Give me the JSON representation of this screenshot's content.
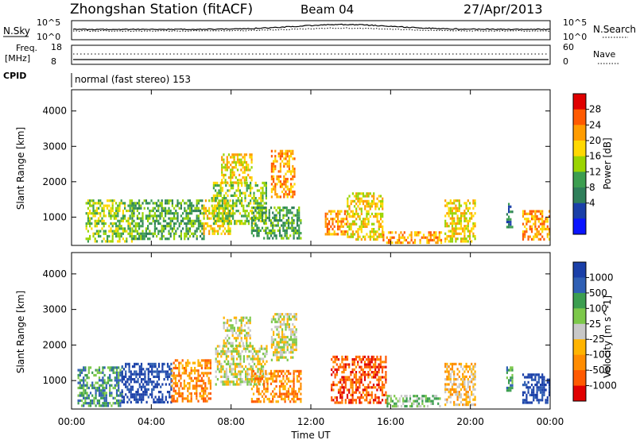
{
  "header": {
    "station": "Zhongshan Station (fitACF)",
    "beam": "Beam 04",
    "date": "27/Apr/2013"
  },
  "top_panels": {
    "nsky_label": "N.Sky",
    "nsky_ticks": [
      "10^5",
      "10^0"
    ],
    "nsearch_label": "N.Search",
    "nsearch_ticks": [
      "10^5",
      "10^0"
    ],
    "freq_label_1": "Freq.",
    "freq_label_2": "[MHz]",
    "freq_ticks": [
      "18",
      "8"
    ],
    "nave_label": "Nave",
    "nave_ticks": [
      "60",
      "0"
    ],
    "cpid_label": "CPID",
    "cpid_value": "normal (fast stereo) 153"
  },
  "chart_data": [
    {
      "type": "heatmap",
      "name": "power",
      "xlabel": "Time UT",
      "ylabel": "Slant Range [km]",
      "x_ticks": [
        "00:00",
        "04:00",
        "08:00",
        "12:00",
        "16:00",
        "20:00",
        "00:00"
      ],
      "x_range_hours": [
        0,
        24
      ],
      "y_ticks": [
        1000,
        2000,
        3000,
        4000
      ],
      "ylim": [
        200,
        4600
      ],
      "colorbar": {
        "title": "Power [dB]",
        "tick_labels": [
          "28",
          "24",
          "20",
          "16",
          "12",
          "8",
          "4"
        ],
        "colors": [
          "#e00000",
          "#ff5a00",
          "#ff9c00",
          "#ffd800",
          "#9ad400",
          "#3c9e50",
          "#2f7f5a",
          "#1a3fa8",
          "#0a14ff"
        ]
      },
      "regions": [
        {
          "t": [
            0.7,
            3.0
          ],
          "r": [
            350,
            1500
          ],
          "level": 4
        },
        {
          "t": [
            3.0,
            6.6
          ],
          "r": [
            400,
            1500
          ],
          "level": 5
        },
        {
          "t": [
            6.6,
            8.0
          ],
          "r": [
            500,
            1500
          ],
          "level": 3
        },
        {
          "t": [
            7.0,
            9.8
          ],
          "r": [
            800,
            2000
          ],
          "level": 4
        },
        {
          "t": [
            7.5,
            9.0
          ],
          "r": [
            2000,
            2800
          ],
          "level": 3
        },
        {
          "t": [
            9.0,
            11.5
          ],
          "r": [
            400,
            1300
          ],
          "level": 5
        },
        {
          "t": [
            10.0,
            11.2
          ],
          "r": [
            1600,
            2900
          ],
          "level": 2
        },
        {
          "t": [
            12.7,
            13.8
          ],
          "r": [
            500,
            1200
          ],
          "level": 2
        },
        {
          "t": [
            13.8,
            15.6
          ],
          "r": [
            400,
            1700
          ],
          "level": 3
        },
        {
          "t": [
            15.6,
            18.5
          ],
          "r": [
            300,
            600
          ],
          "level": 2
        },
        {
          "t": [
            18.7,
            20.2
          ],
          "r": [
            300,
            1500
          ],
          "level": 3
        },
        {
          "t": [
            21.8,
            22.1
          ],
          "r": [
            700,
            1400
          ],
          "level": 6
        },
        {
          "t": [
            22.6,
            24.0
          ],
          "r": [
            400,
            1200
          ],
          "level": 2
        }
      ]
    },
    {
      "type": "heatmap",
      "name": "velocity",
      "xlabel": "Time UT",
      "ylabel": "Slant Range [km]",
      "x_ticks": [
        "00:00",
        "04:00",
        "08:00",
        "12:00",
        "16:00",
        "20:00",
        "00:00"
      ],
      "x_range_hours": [
        0,
        24
      ],
      "y_ticks": [
        1000,
        2000,
        3000,
        4000
      ],
      "ylim": [
        200,
        4600
      ],
      "colorbar": {
        "title": "Velocity [m s^-1]",
        "tick_labels": [
          "1000",
          "500",
          "100",
          "25",
          "-25",
          "-100",
          "-500",
          "-1000"
        ],
        "colors": [
          "#1a3fa8",
          "#2f5fb4",
          "#3c9e50",
          "#7cc84a",
          "#c8c8c8",
          "#ffb400",
          "#ff8c00",
          "#ff5a00",
          "#e00000"
        ]
      },
      "regions": [
        {
          "t": [
            0.3,
            2.5
          ],
          "r": [
            300,
            1400
          ],
          "level": 2
        },
        {
          "t": [
            2.5,
            5.0
          ],
          "r": [
            400,
            1500
          ],
          "level": 0
        },
        {
          "t": [
            5.0,
            7.0
          ],
          "r": [
            400,
            1600
          ],
          "level": 6
        },
        {
          "t": [
            7.2,
            9.8
          ],
          "r": [
            900,
            2000
          ],
          "level": 4
        },
        {
          "t": [
            7.6,
            9.0
          ],
          "r": [
            2000,
            2800
          ],
          "level": 4
        },
        {
          "t": [
            9.0,
            11.5
          ],
          "r": [
            400,
            1300
          ],
          "level": 6
        },
        {
          "t": [
            10.0,
            11.3
          ],
          "r": [
            1600,
            2900
          ],
          "level": 4
        },
        {
          "t": [
            13.0,
            15.8
          ],
          "r": [
            400,
            1700
          ],
          "level": 7
        },
        {
          "t": [
            15.8,
            18.5
          ],
          "r": [
            300,
            600
          ],
          "level": 3
        },
        {
          "t": [
            18.7,
            20.2
          ],
          "r": [
            300,
            1500
          ],
          "level": 5
        },
        {
          "t": [
            21.8,
            22.1
          ],
          "r": [
            700,
            1400
          ],
          "level": 2
        },
        {
          "t": [
            22.6,
            24.0
          ],
          "r": [
            400,
            1200
          ],
          "level": 0
        }
      ]
    }
  ]
}
